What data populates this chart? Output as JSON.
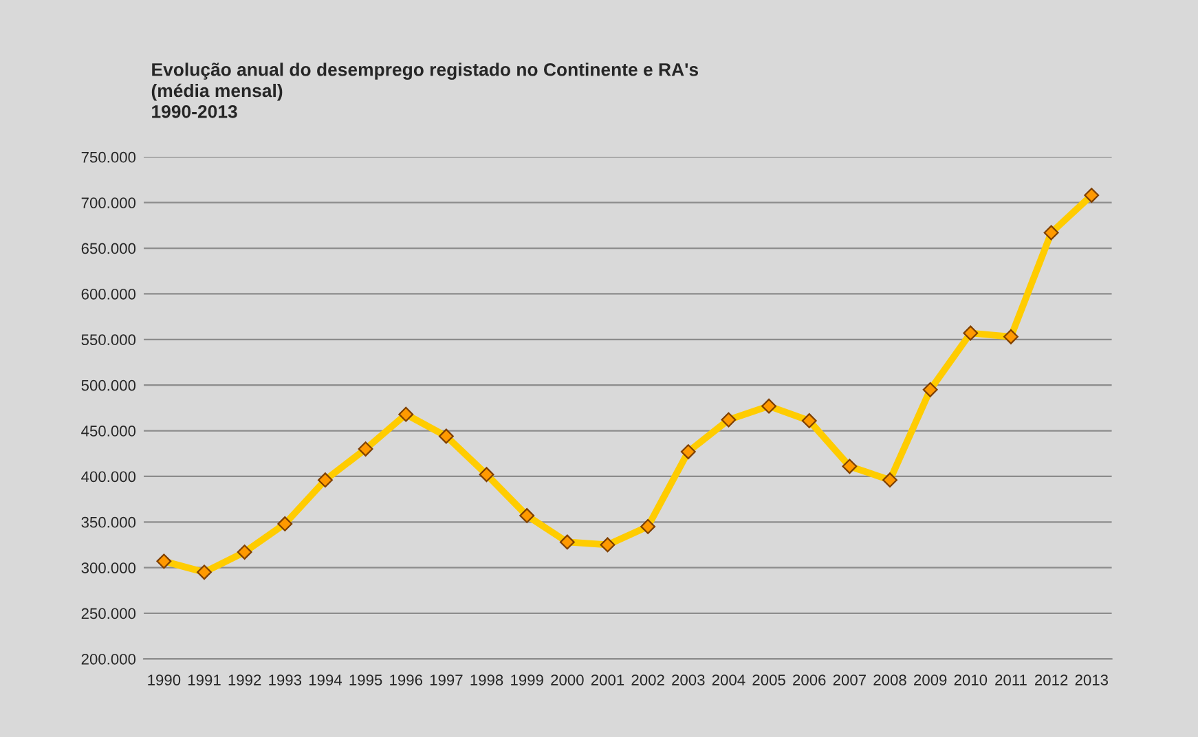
{
  "chart_data": {
    "type": "line",
    "title": "Evolução anual do desemprego registado no Continente e RA's\n(média mensal)\n1990-2013",
    "categories": [
      "1990",
      "1991",
      "1992",
      "1993",
      "1994",
      "1995",
      "1996",
      "1997",
      "1998",
      "1999",
      "2000",
      "2001",
      "2002",
      "2003",
      "2004",
      "2005",
      "2006",
      "2007",
      "2008",
      "2009",
      "2010",
      "2011",
      "2012",
      "2013"
    ],
    "series": [
      {
        "color": "#ffcc00",
        "values": [
          307000,
          295000,
          317000,
          348000,
          396000,
          430000,
          468000,
          444000,
          402000,
          357000,
          328000,
          325000,
          345000,
          427000,
          462000,
          477000,
          461000,
          411000,
          396000,
          495000,
          557000,
          553000,
          667000,
          708000
        ]
      }
    ],
    "ylim": [
      200000,
      750000
    ],
    "yticks": [
      {
        "value": 200000,
        "label": "200.000"
      },
      {
        "value": 250000,
        "label": "250.000"
      },
      {
        "value": 300000,
        "label": "300.000"
      },
      {
        "value": 350000,
        "label": "350.000"
      },
      {
        "value": 400000,
        "label": "400.000"
      },
      {
        "value": 450000,
        "label": "450.000"
      },
      {
        "value": 500000,
        "label": "500.000"
      },
      {
        "value": 550000,
        "label": "550.000"
      },
      {
        "value": 600000,
        "label": "600.000"
      },
      {
        "value": 650000,
        "label": "650.000"
      },
      {
        "value": 700000,
        "label": "700.000"
      },
      {
        "value": 750000,
        "label": "750.000"
      }
    ],
    "grid": "y",
    "marker": "diamond",
    "line_style": "solid",
    "legend": false
  }
}
